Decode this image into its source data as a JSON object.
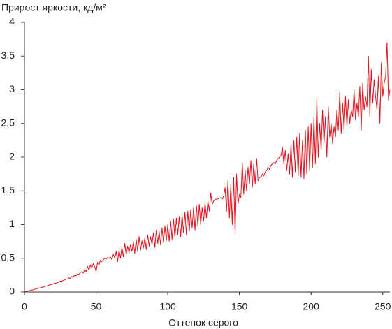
{
  "chart_data": {
    "type": "line",
    "title": "Прирост яркости, кд/м²",
    "x_label": "Оттенок серого",
    "x": [
      0,
      1,
      2,
      3,
      4,
      5,
      6,
      7,
      8,
      9,
      10,
      11,
      12,
      13,
      14,
      15,
      16,
      17,
      18,
      19,
      20,
      21,
      22,
      23,
      24,
      25,
      26,
      27,
      28,
      29,
      30,
      31,
      32,
      33,
      34,
      35,
      36,
      37,
      38,
      39,
      40,
      41,
      42,
      43,
      44,
      45,
      46,
      47,
      48,
      49,
      50,
      51,
      52,
      53,
      54,
      55,
      56,
      57,
      58,
      59,
      60,
      61,
      62,
      63,
      64,
      65,
      66,
      67,
      68,
      69,
      70,
      71,
      72,
      73,
      74,
      75,
      76,
      77,
      78,
      79,
      80,
      81,
      82,
      83,
      84,
      85,
      86,
      87,
      88,
      89,
      90,
      91,
      92,
      93,
      94,
      95,
      96,
      97,
      98,
      99,
      100,
      101,
      102,
      103,
      104,
      105,
      106,
      107,
      108,
      109,
      110,
      111,
      112,
      113,
      114,
      115,
      116,
      117,
      118,
      119,
      120,
      121,
      122,
      123,
      124,
      125,
      126,
      127,
      128,
      129,
      130,
      131,
      132,
      133,
      134,
      135,
      136,
      137,
      138,
      139,
      140,
      141,
      142,
      143,
      144,
      145,
      146,
      147,
      148,
      149,
      150,
      151,
      152,
      153,
      154,
      155,
      156,
      157,
      158,
      159,
      160,
      161,
      162,
      163,
      164,
      165,
      166,
      167,
      168,
      169,
      170,
      171,
      172,
      173,
      174,
      175,
      176,
      177,
      178,
      179,
      180,
      181,
      182,
      183,
      184,
      185,
      186,
      187,
      188,
      189,
      190,
      191,
      192,
      193,
      194,
      195,
      196,
      197,
      198,
      199,
      200,
      201,
      202,
      203,
      204,
      205,
      206,
      207,
      208,
      209,
      210,
      211,
      212,
      213,
      214,
      215,
      216,
      217,
      218,
      219,
      220,
      221,
      222,
      223,
      224,
      225,
      226,
      227,
      228,
      229,
      230,
      231,
      232,
      233,
      234,
      235,
      236,
      237,
      238,
      239,
      240,
      241,
      242,
      243,
      244,
      245,
      246,
      247,
      248,
      249,
      250,
      251,
      252,
      253,
      254,
      255
    ],
    "series": [
      {
        "color": "#e0141e",
        "values": [
          0,
          0.01,
          0.01,
          0.02,
          0.02,
          0.03,
          0.03,
          0.04,
          0.05,
          0.05,
          0.06,
          0.06,
          0.07,
          0.07,
          0.08,
          0.09,
          0.09,
          0.1,
          0.11,
          0.11,
          0.12,
          0.13,
          0.13,
          0.14,
          0.15,
          0.16,
          0.16,
          0.17,
          0.18,
          0.19,
          0.19,
          0.21,
          0.2,
          0.23,
          0.22,
          0.25,
          0.24,
          0.27,
          0.26,
          0.29,
          0.3,
          0.28,
          0.33,
          0.3,
          0.38,
          0.32,
          0.4,
          0.36,
          0.42,
          0.38,
          0.3,
          0.44,
          0.4,
          0.47,
          0.45,
          0.48,
          0.5,
          0.49,
          0.51,
          0.5,
          0.52,
          0.48,
          0.56,
          0.5,
          0.6,
          0.45,
          0.62,
          0.5,
          0.66,
          0.52,
          0.72,
          0.55,
          0.68,
          0.58,
          0.7,
          0.6,
          0.75,
          0.57,
          0.78,
          0.6,
          0.82,
          0.62,
          0.76,
          0.65,
          0.8,
          0.63,
          0.85,
          0.68,
          0.82,
          0.7,
          0.88,
          0.66,
          0.92,
          0.72,
          0.9,
          0.7,
          0.95,
          0.74,
          0.98,
          0.76,
          1.0,
          0.75,
          1.05,
          0.78,
          1.08,
          0.8,
          1.1,
          0.85,
          1.12,
          0.82,
          1.15,
          0.88,
          1.18,
          0.85,
          1.2,
          0.9,
          1.22,
          0.95,
          1.25,
          0.92,
          1.28,
          0.98,
          1.3,
          1.0,
          1.25,
          1.05,
          1.32,
          1.1,
          1.35,
          1.2,
          1.47,
          1.3,
          1.35,
          1.37,
          1.38,
          1.38,
          1.39,
          1.4,
          1.38,
          1.42,
          1.55,
          1.2,
          1.65,
          1.1,
          1.6,
          1.0,
          1.7,
          0.85,
          1.75,
          1.3,
          1.45,
          1.4,
          1.92,
          1.45,
          1.8,
          1.5,
          1.85,
          1.6,
          1.95,
          1.55,
          1.9,
          1.6,
          1.98,
          1.65,
          1.7,
          1.7,
          1.75,
          1.72,
          1.78,
          1.8,
          1.85,
          1.82,
          1.88,
          1.9,
          1.92,
          1.9,
          1.95,
          1.98,
          2.0,
          2.02,
          2.15,
          1.9,
          2.1,
          1.8,
          2.05,
          1.75,
          2.2,
          1.7,
          2.25,
          1.78,
          2.3,
          1.72,
          2.35,
          1.7,
          2.25,
          1.68,
          2.4,
          1.75,
          2.45,
          1.8,
          2.5,
          1.85,
          2.6,
          1.9,
          2.86,
          2.0,
          2.5,
          2.1,
          2.7,
          2.2,
          2.6,
          2.0,
          2.75,
          2.3,
          2.5,
          2.2,
          2.45,
          2.3,
          2.7,
          2.4,
          2.96,
          2.35,
          2.8,
          2.4,
          2.9,
          2.45,
          2.85,
          2.5,
          2.7,
          2.6,
          3.0,
          2.55,
          2.8,
          2.6,
          3.05,
          2.4,
          3.1,
          2.7,
          2.9,
          2.75,
          3.5,
          2.6,
          3.3,
          2.8,
          3.15,
          2.9,
          2.7,
          3.2,
          2.5,
          3.4,
          2.9,
          3.1,
          3.2,
          3.7,
          2.85,
          3.0
        ]
      }
    ],
    "xlim": [
      0,
      255
    ],
    "xticks": [
      0,
      50,
      100,
      150,
      200,
      250
    ],
    "ylim": [
      0,
      4
    ],
    "yticks": [
      0,
      0.5,
      1,
      1.5,
      2,
      2.5,
      3,
      3.5,
      4
    ],
    "grid": false
  }
}
